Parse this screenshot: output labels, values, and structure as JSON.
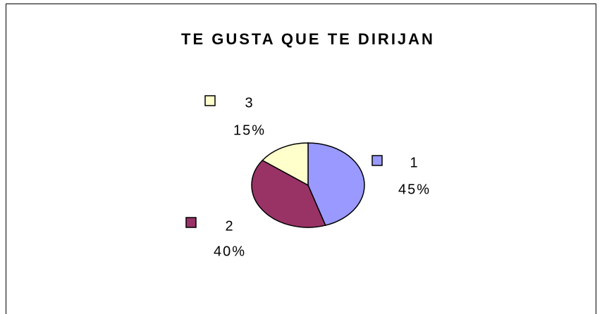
{
  "chart_data": {
    "type": "pie",
    "title": "TE GUSTA QUE TE DIRIJAN",
    "categories": [
      "1",
      "2",
      "3"
    ],
    "values": [
      45,
      40,
      15
    ],
    "value_labels": [
      "45%",
      "40%",
      "15%"
    ],
    "colors": [
      "#9999ff",
      "#993366",
      "#ffffcc"
    ]
  }
}
